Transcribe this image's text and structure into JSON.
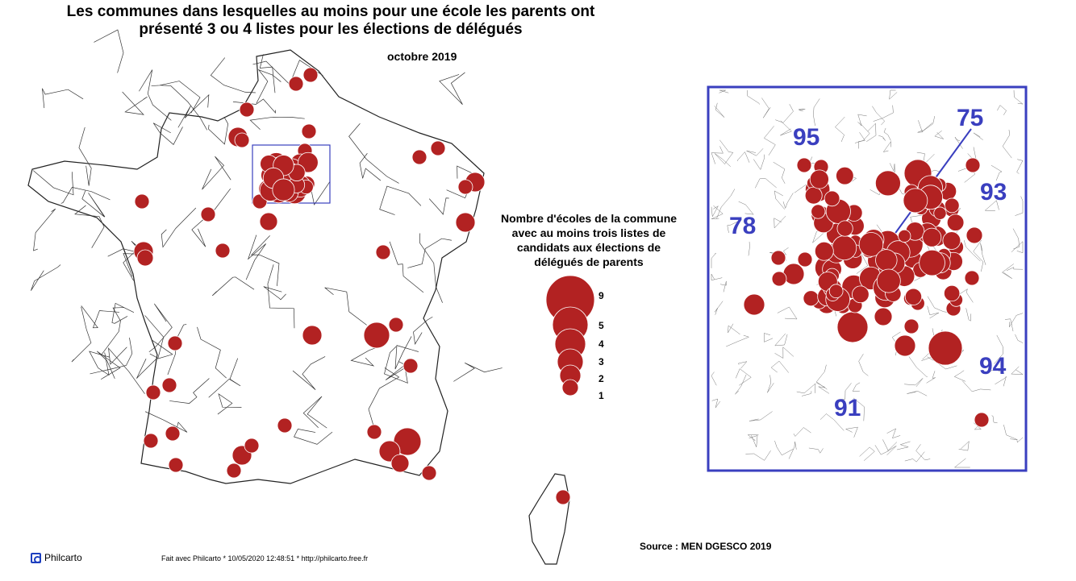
{
  "title": {
    "line1": "Les communes dans lesquelles au moins pour une école les parents ont",
    "line2": "présenté 3 ou 4 listes pour les élections de délégués"
  },
  "date": "octobre 2019",
  "legend": {
    "title_lines": [
      "Nombre d'écoles de la commune",
      "avec au moins trois listes de",
      "candidats aux élections de",
      "délégués de parents"
    ],
    "values": [
      9,
      5,
      4,
      3,
      2,
      1
    ]
  },
  "inset_labels": [
    {
      "code": "95",
      "kind": "departement"
    },
    {
      "code": "75",
      "kind": "departement"
    },
    {
      "code": "93",
      "kind": "departement"
    },
    {
      "code": "78",
      "kind": "departement"
    },
    {
      "code": "94",
      "kind": "departement"
    },
    {
      "code": "91",
      "kind": "departement"
    }
  ],
  "source": "Source : MEN DGESCO 2019",
  "footer": "Fait avec Philcarto * 10/05/2020 12:48:51 * http://philcarto.free.fr",
  "brand": "Philcarto",
  "colors": {
    "bubble": "#b22222",
    "inset_frame": "#3a3fbf",
    "label": "#3a3fbf",
    "boundary": "#333333"
  }
}
